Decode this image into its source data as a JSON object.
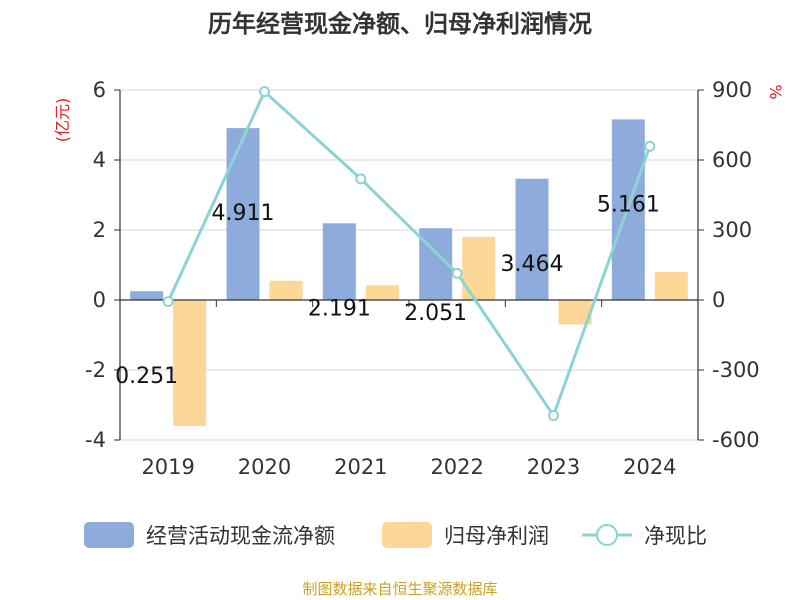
{
  "chart_data": {
    "type": "bar",
    "title": "历年经营现金净额、归母净利润情况",
    "categories": [
      "2019",
      "2020",
      "2021",
      "2022",
      "2023",
      "2024"
    ],
    "series": [
      {
        "name": "经营活动现金流净额",
        "kind": "bar",
        "axis": "left",
        "color": "#8eacdb",
        "values": [
          0.251,
          4.911,
          2.191,
          2.051,
          3.464,
          5.161
        ],
        "labels": [
          "0.251",
          "4.911",
          "2.191",
          "2.051",
          "3.464",
          "5.161"
        ]
      },
      {
        "name": "归母净利润",
        "kind": "bar",
        "axis": "left",
        "color": "#fdd797",
        "values": [
          -3.6,
          0.55,
          0.42,
          1.8,
          -0.7,
          0.8
        ]
      },
      {
        "name": "净现比",
        "kind": "line",
        "axis": "right",
        "color": "#8dd3d6",
        "values": [
          -7,
          893,
          519,
          114,
          -495,
          659
        ]
      }
    ],
    "left_axis": {
      "unit": "(亿元)",
      "ylim": [
        -4,
        6
      ],
      "ticks": [
        {
          "v": 6,
          "t": "6"
        },
        {
          "v": 4,
          "t": "4"
        },
        {
          "v": 2,
          "t": "2"
        },
        {
          "v": 0,
          "t": "0"
        },
        {
          "v": -2,
          "t": "-2"
        },
        {
          "v": -4,
          "t": "-4"
        }
      ]
    },
    "right_axis": {
      "unit": "%",
      "ylim": [
        -600,
        900
      ],
      "ticks": [
        {
          "v": 900,
          "t": "900"
        },
        {
          "v": 600,
          "t": "600"
        },
        {
          "v": 300,
          "t": "300"
        },
        {
          "v": 0,
          "t": "0"
        },
        {
          "v": -300,
          "t": "-300"
        },
        {
          "v": -600,
          "t": "-600"
        }
      ]
    },
    "unit_color": "#e02020",
    "grid": true,
    "legend_position": "bottom"
  },
  "source": {
    "text": "制图数据来自恒生聚源数据库",
    "color": "#c9a227"
  }
}
